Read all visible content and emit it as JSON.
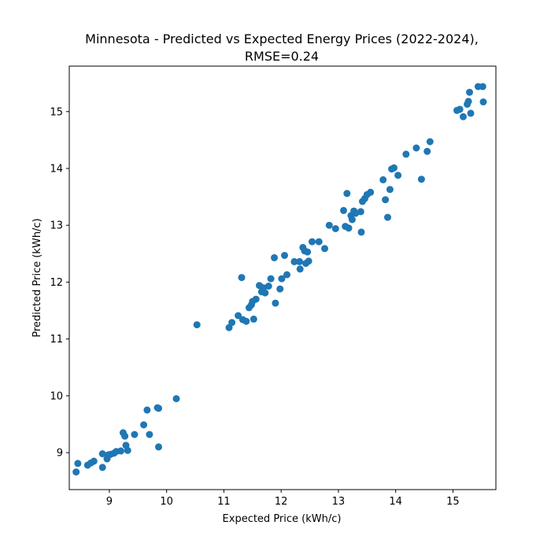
{
  "chart_data": {
    "type": "scatter",
    "title_line1": "Minnesota - Predicted vs Expected Energy Prices (2022-2024),",
    "title_line2": "RMSE=0.24",
    "xlabel": "Expected Price (kWh/c)",
    "ylabel": "Predicted Price (kWh/c)",
    "xlim": [
      8.3,
      15.75
    ],
    "ylim": [
      8.35,
      15.8
    ],
    "xticks": [
      9,
      10,
      11,
      12,
      13,
      14,
      15
    ],
    "yticks": [
      9,
      10,
      11,
      12,
      13,
      14,
      15
    ],
    "grid": false,
    "marker_color": "#1f77b4",
    "points": [
      {
        "x": 8.42,
        "y": 8.66
      },
      {
        "x": 8.45,
        "y": 8.81
      },
      {
        "x": 8.62,
        "y": 8.78
      },
      {
        "x": 8.68,
        "y": 8.82
      },
      {
        "x": 8.73,
        "y": 8.85
      },
      {
        "x": 8.88,
        "y": 8.74
      },
      {
        "x": 8.88,
        "y": 8.98
      },
      {
        "x": 8.96,
        "y": 8.89
      },
      {
        "x": 8.98,
        "y": 8.96
      },
      {
        "x": 9.02,
        "y": 8.97
      },
      {
        "x": 9.08,
        "y": 8.99
      },
      {
        "x": 9.12,
        "y": 9.02
      },
      {
        "x": 9.2,
        "y": 9.03
      },
      {
        "x": 9.24,
        "y": 9.35
      },
      {
        "x": 9.27,
        "y": 9.29
      },
      {
        "x": 9.29,
        "y": 9.13
      },
      {
        "x": 9.32,
        "y": 9.04
      },
      {
        "x": 9.44,
        "y": 9.32
      },
      {
        "x": 9.6,
        "y": 9.49
      },
      {
        "x": 9.66,
        "y": 9.75
      },
      {
        "x": 9.7,
        "y": 9.32
      },
      {
        "x": 9.84,
        "y": 9.79
      },
      {
        "x": 9.86,
        "y": 9.78
      },
      {
        "x": 9.86,
        "y": 9.1
      },
      {
        "x": 10.17,
        "y": 9.95
      },
      {
        "x": 10.53,
        "y": 11.25
      },
      {
        "x": 11.09,
        "y": 11.2
      },
      {
        "x": 11.14,
        "y": 11.29
      },
      {
        "x": 11.25,
        "y": 11.41
      },
      {
        "x": 11.31,
        "y": 12.08
      },
      {
        "x": 11.33,
        "y": 11.34
      },
      {
        "x": 11.39,
        "y": 11.31
      },
      {
        "x": 11.44,
        "y": 11.55
      },
      {
        "x": 11.48,
        "y": 11.6
      },
      {
        "x": 11.5,
        "y": 11.66
      },
      {
        "x": 11.52,
        "y": 11.35
      },
      {
        "x": 11.56,
        "y": 11.7
      },
      {
        "x": 11.62,
        "y": 11.94
      },
      {
        "x": 11.66,
        "y": 11.83
      },
      {
        "x": 11.69,
        "y": 11.9
      },
      {
        "x": 11.72,
        "y": 11.81
      },
      {
        "x": 11.78,
        "y": 11.93
      },
      {
        "x": 11.82,
        "y": 12.06
      },
      {
        "x": 11.88,
        "y": 12.43
      },
      {
        "x": 11.9,
        "y": 11.63
      },
      {
        "x": 11.98,
        "y": 11.88
      },
      {
        "x": 12.01,
        "y": 12.06
      },
      {
        "x": 12.06,
        "y": 12.47
      },
      {
        "x": 12.1,
        "y": 12.13
      },
      {
        "x": 12.23,
        "y": 12.36
      },
      {
        "x": 12.32,
        "y": 12.36
      },
      {
        "x": 12.33,
        "y": 12.23
      },
      {
        "x": 12.38,
        "y": 12.61
      },
      {
        "x": 12.41,
        "y": 12.55
      },
      {
        "x": 12.43,
        "y": 12.33
      },
      {
        "x": 12.46,
        "y": 12.53
      },
      {
        "x": 12.48,
        "y": 12.37
      },
      {
        "x": 12.54,
        "y": 12.71
      },
      {
        "x": 12.66,
        "y": 12.71
      },
      {
        "x": 12.76,
        "y": 12.59
      },
      {
        "x": 12.84,
        "y": 13.0
      },
      {
        "x": 12.95,
        "y": 12.94
      },
      {
        "x": 13.09,
        "y": 13.26
      },
      {
        "x": 13.12,
        "y": 12.98
      },
      {
        "x": 13.15,
        "y": 13.56
      },
      {
        "x": 13.18,
        "y": 12.95
      },
      {
        "x": 13.22,
        "y": 13.17
      },
      {
        "x": 13.24,
        "y": 13.1
      },
      {
        "x": 13.27,
        "y": 13.25
      },
      {
        "x": 13.3,
        "y": 13.21
      },
      {
        "x": 13.39,
        "y": 13.24
      },
      {
        "x": 13.4,
        "y": 12.88
      },
      {
        "x": 13.42,
        "y": 13.42
      },
      {
        "x": 13.46,
        "y": 13.47
      },
      {
        "x": 13.5,
        "y": 13.54
      },
      {
        "x": 13.56,
        "y": 13.58
      },
      {
        "x": 13.78,
        "y": 13.8
      },
      {
        "x": 13.82,
        "y": 13.45
      },
      {
        "x": 13.86,
        "y": 13.14
      },
      {
        "x": 13.9,
        "y": 13.63
      },
      {
        "x": 13.93,
        "y": 13.99
      },
      {
        "x": 13.97,
        "y": 14.01
      },
      {
        "x": 14.04,
        "y": 13.88
      },
      {
        "x": 14.18,
        "y": 14.25
      },
      {
        "x": 14.36,
        "y": 14.36
      },
      {
        "x": 14.45,
        "y": 13.81
      },
      {
        "x": 14.55,
        "y": 14.3
      },
      {
        "x": 14.6,
        "y": 14.47
      },
      {
        "x": 15.07,
        "y": 15.02
      },
      {
        "x": 15.12,
        "y": 15.04
      },
      {
        "x": 15.18,
        "y": 14.91
      },
      {
        "x": 15.25,
        "y": 15.13
      },
      {
        "x": 15.27,
        "y": 15.18
      },
      {
        "x": 15.29,
        "y": 15.34
      },
      {
        "x": 15.31,
        "y": 14.97
      },
      {
        "x": 15.44,
        "y": 15.44
      },
      {
        "x": 15.52,
        "y": 15.44
      },
      {
        "x": 15.53,
        "y": 15.17
      }
    ]
  }
}
